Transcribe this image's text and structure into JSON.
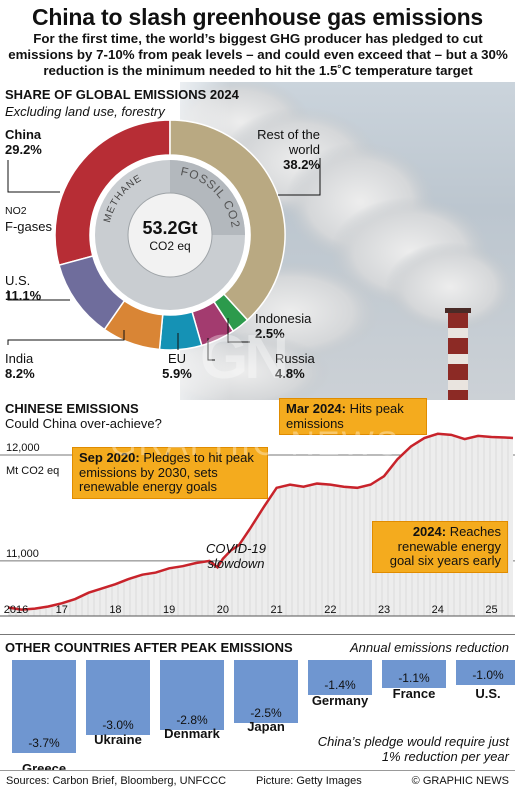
{
  "header": {
    "title": "China to slash greenhouse gas emissions",
    "subtitle": "For the first time, the world’s biggest GHG producer has pledged to cut emissions by 7-10% from peak levels – and could even exceed that – but a 30% reduction is the minimum needed to hit the 1.5˚C temperature target"
  },
  "share": {
    "title": "Share of Global Emissions 2024",
    "subtitle": "Excluding land use, forestry",
    "center_value": "53.2Gt",
    "center_unit": "CO2 eq",
    "ring_labels": {
      "methane": "METHANE",
      "fossil": "FOSSIL CO2"
    },
    "minor_labels": {
      "no2": "NO2",
      "fgases": "F-gases"
    }
  },
  "emissions": {
    "title": "Chinese Emissions",
    "subtitle": "Could China over-achieve?",
    "unit_label": "Mt CO2 eq",
    "covid_note": "COVID-19 slowdown",
    "callouts": {
      "sep2020": {
        "bold": "Sep 2020:",
        "text": " Pledges to hit peak emissions by 2030, sets renewable energy goals"
      },
      "mar2024": {
        "bold": "Mar 2024:",
        "text": " Hits peak emissions"
      },
      "y2024": {
        "bold": "2024:",
        "text": " Reaches renewable energy goal six years early"
      }
    }
  },
  "others": {
    "title": "Other Countries After Peak Emissions",
    "note": "Annual emissions reduction",
    "pledge": "China’s pledge would require just 1% reduction per year"
  },
  "footer": {
    "sources": "Sources: Carbon Brief, Bloomberg, UNFCCC",
    "picture": "Picture: Getty Images",
    "credit": "© GRAPHIC NEWS"
  },
  "watermark": {
    "logo": "GN",
    "text": "GRAPHIC NEWS"
  },
  "colors": {
    "china": "#b72d35",
    "row": "#b9a982",
    "us": "#6f6d9c",
    "india": "#d98535",
    "eu": "#1592b5",
    "russia": "#a33b6f",
    "indonesia": "#2c9a4c",
    "line": "#c8232b",
    "callout": "#f4ab1e",
    "bar": "#6f96d0"
  },
  "chart_data": [
    {
      "type": "pie",
      "title": "Share of Global Emissions 2024",
      "subtitle": "Excluding land use, forestry",
      "unit": "%",
      "slices": [
        {
          "label": "China",
          "value": 29.2,
          "display": "29.2%"
        },
        {
          "label": "Rest of the world",
          "value": 38.2,
          "display": "38.2%"
        },
        {
          "label": "Indonesia",
          "value": 2.5,
          "display": "2.5%"
        },
        {
          "label": "Russia",
          "value": 4.8,
          "display": "4.8%"
        },
        {
          "label": "EU",
          "value": 5.9,
          "display": "5.9%"
        },
        {
          "label": "India",
          "value": 8.2,
          "display": "8.2%"
        },
        {
          "label": "U.S.",
          "value": 11.1,
          "display": "11.1%"
        }
      ]
    },
    {
      "type": "area",
      "title": "Chinese Emissions",
      "ylabel": "Mt CO2 eq",
      "x_ticks": [
        "2016",
        "17",
        "18",
        "19",
        "20",
        "21",
        "22",
        "23",
        "24",
        "25"
      ],
      "y_ticks": [
        {
          "value": 11000,
          "label": "11,000"
        },
        {
          "value": 12000,
          "label": "12,000"
        }
      ],
      "xlim": [
        2016,
        2025.4
      ],
      "ylim": [
        10480,
        12330
      ],
      "series": [
        {
          "x": [
            2016.0,
            2016.25,
            2016.5,
            2016.75,
            2017.0,
            2017.25,
            2017.5,
            2017.75,
            2018.0,
            2018.25,
            2018.5,
            2018.75,
            2019.0,
            2019.25,
            2019.5,
            2019.75,
            2019.9,
            2020.0,
            2020.15,
            2020.3,
            2020.5,
            2020.75,
            2021.0,
            2021.25,
            2021.5,
            2021.75,
            2022.0,
            2022.25,
            2022.5,
            2022.75,
            2023.0,
            2023.25,
            2023.5,
            2023.75,
            2024.0,
            2024.25,
            2024.5,
            2024.75,
            2025.0,
            2025.25,
            2025.4
          ],
          "values": [
            10560,
            10540,
            10550,
            10570,
            10600,
            10640,
            10700,
            10740,
            10780,
            10830,
            10870,
            10890,
            10930,
            10950,
            10980,
            11000,
            10940,
            11020,
            11100,
            11150,
            11300,
            11500,
            11690,
            11720,
            11700,
            11730,
            11720,
            11700,
            11690,
            11720,
            11800,
            11960,
            12080,
            12160,
            12200,
            12190,
            12150,
            12180,
            12170,
            12165,
            12160
          ]
        }
      ]
    },
    {
      "type": "bar",
      "title": "Other Countries After Peak Emissions",
      "ylabel": "Annual emissions reduction",
      "categories": [
        "Greece",
        "Ukraine",
        "Denmark",
        "Japan",
        "Germany",
        "France",
        "U.S."
      ],
      "values": [
        -3.7,
        -3.0,
        -2.8,
        -2.5,
        -1.4,
        -1.1,
        -1.0
      ],
      "labels": [
        "-3.7%",
        "-3.0%",
        "-2.8%",
        "-2.5%",
        "-1.4%",
        "-1.1%",
        "-1.0%"
      ]
    }
  ]
}
